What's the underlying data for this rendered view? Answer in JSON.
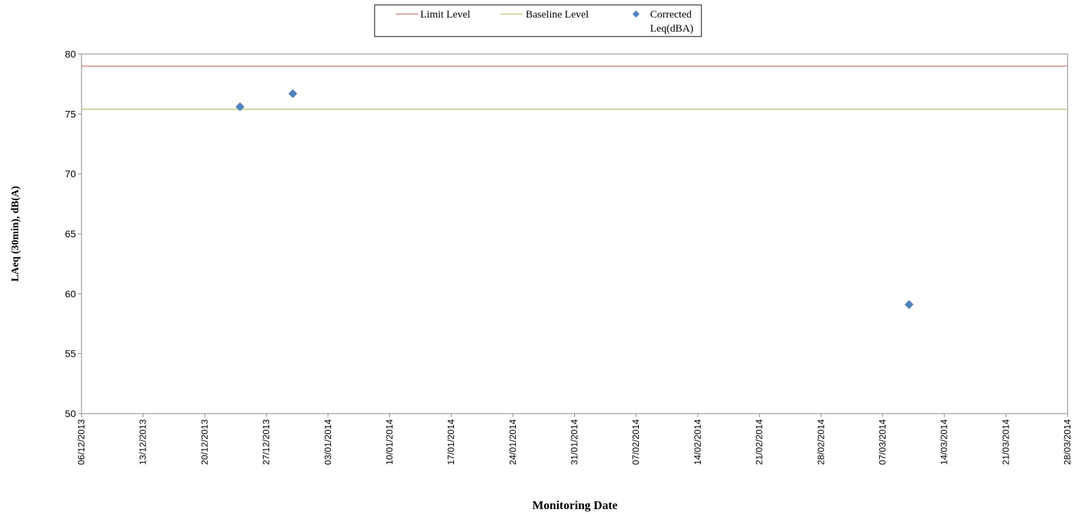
{
  "chart_data": {
    "type": "scatter",
    "xlabel": "Monitoring Date",
    "ylabel": "LAeq (30min), dB(A)",
    "ylim": [
      50,
      80
    ],
    "yticks": [
      50,
      55,
      60,
      65,
      70,
      75,
      80
    ],
    "xlim": [
      "06/12/2013",
      "28/03/2014"
    ],
    "xticks": [
      "06/12/2013",
      "13/12/2013",
      "20/12/2013",
      "27/12/2013",
      "03/01/2014",
      "10/01/2014",
      "17/01/2014",
      "24/01/2014",
      "31/01/2014",
      "07/02/2014",
      "14/02/2014",
      "21/02/2014",
      "28/02/2014",
      "07/03/2014",
      "14/03/2014",
      "21/03/2014",
      "28/03/2014"
    ],
    "grid": false,
    "legend_position": "top-center",
    "series": [
      {
        "name": "Limit Level",
        "kind": "line",
        "color": "#c0504d",
        "value": 79
      },
      {
        "name": "Baseline Level",
        "kind": "line",
        "color": "#9bbb59",
        "value": 75.4
      },
      {
        "name": "Corrected Leq(dBA)",
        "kind": "marker",
        "marker": "diamond",
        "color": "#4f81bd",
        "points": [
          {
            "x": "24/12/2013",
            "y": 75.6
          },
          {
            "x": "30/12/2013",
            "y": 76.7
          },
          {
            "x": "10/03/2014",
            "y": 59.1
          }
        ]
      }
    ],
    "legend": {
      "limit_label": "Limit Level",
      "baseline_label": "Baseline Level",
      "corrected_label_line1": "Corrected",
      "corrected_label_line2": "Leq(dBA)"
    }
  }
}
